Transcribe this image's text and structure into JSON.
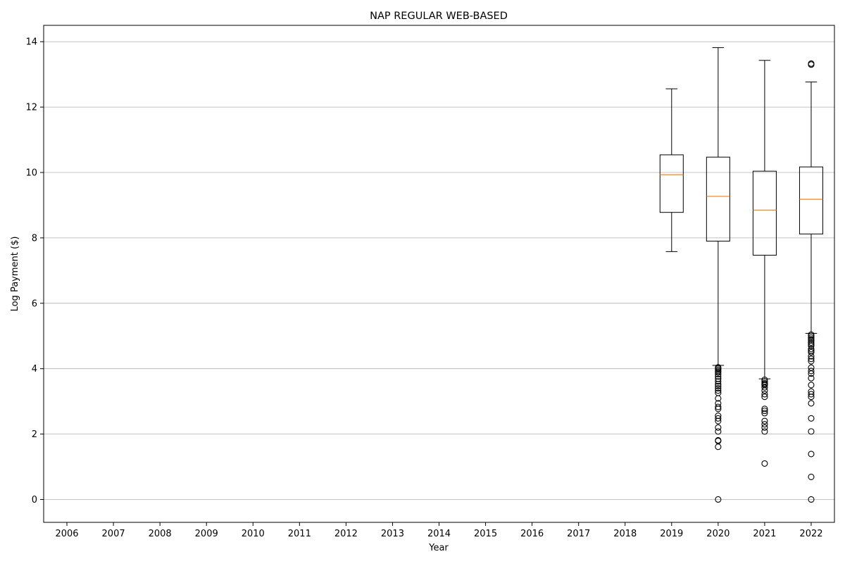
{
  "chart_data": {
    "type": "box",
    "title": "NAP REGULAR WEB-BASED",
    "xlabel": "Year",
    "ylabel": "Log Payment ($)",
    "ylim": [
      -0.7,
      14.5
    ],
    "yticks": [
      0,
      2,
      4,
      6,
      8,
      10,
      12,
      14
    ],
    "grid": "horizontal",
    "categories": [
      "2006",
      "2007",
      "2008",
      "2009",
      "2010",
      "2011",
      "2012",
      "2013",
      "2014",
      "2015",
      "2016",
      "2017",
      "2018",
      "2019",
      "2020",
      "2021",
      "2022"
    ],
    "boxes": [
      {
        "category": "2019",
        "whisker_low": 7.58,
        "q1": 8.78,
        "median": 9.93,
        "q3": 10.54,
        "whisker_high": 12.56,
        "outliers": []
      },
      {
        "category": "2020",
        "whisker_low": 4.1,
        "q1": 7.9,
        "median": 9.27,
        "q3": 10.47,
        "whisker_high": 13.82,
        "outliers": [
          0.0,
          1.61,
          1.79,
          1.81,
          2.08,
          2.2,
          2.4,
          2.48,
          2.56,
          2.77,
          2.83,
          2.94,
          3.09,
          3.26,
          3.33,
          3.4,
          3.47,
          3.53,
          3.61,
          3.69,
          3.76,
          3.83,
          3.89,
          3.93,
          3.97,
          4.01,
          4.04
        ]
      },
      {
        "category": "2021",
        "whisker_low": 3.69,
        "q1": 7.47,
        "median": 8.85,
        "q3": 10.04,
        "whisker_high": 13.43,
        "outliers": [
          1.1,
          2.08,
          2.2,
          2.3,
          2.4,
          2.64,
          2.71,
          2.77,
          3.14,
          3.22,
          3.33,
          3.43,
          3.5,
          3.53,
          3.56,
          3.61,
          3.66
        ]
      },
      {
        "category": "2022",
        "whisker_low": 5.08,
        "q1": 8.12,
        "median": 9.18,
        "q3": 10.17,
        "whisker_high": 12.77,
        "outliers": [
          0.0,
          0.69,
          1.39,
          2.08,
          2.48,
          2.94,
          3.14,
          3.22,
          3.3,
          3.5,
          3.71,
          3.85,
          3.93,
          4.03,
          4.23,
          4.3,
          4.38,
          4.5,
          4.55,
          4.6,
          4.7,
          4.75,
          4.8,
          4.86,
          4.9,
          4.95,
          5.0,
          5.04,
          13.3,
          13.33
        ]
      }
    ],
    "colors": {
      "box": "#000000",
      "median": "#ff7f0e",
      "grid": "#b0b0b0"
    }
  }
}
